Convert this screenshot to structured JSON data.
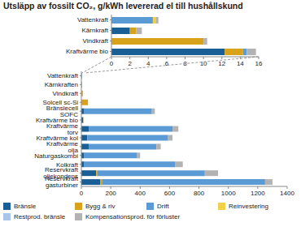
{
  "chart_data": [
    {
      "type": "bar",
      "title": "Utsläpp av fossilt CO₂, g/kWh levererad el till hushållskund",
      "orientation": "horizontal",
      "stacked": true,
      "grid": false,
      "categories": [
        "Vattenkraft",
        "Kärnkraft",
        "Vindkraft",
        "Kraftvärme bio"
      ],
      "series": [
        {
          "name": "Bränsle",
          "color": "#1a5e96",
          "values": [
            0,
            2.0,
            0,
            12.3
          ]
        },
        {
          "name": "Bygg & riv",
          "color": "#d9a21b",
          "values": [
            0,
            0.7,
            10.0,
            2.0
          ]
        },
        {
          "name": "Drift",
          "color": "#5b9bd5",
          "values": [
            4.5,
            0,
            0,
            0.4
          ]
        },
        {
          "name": "Reinvestering",
          "color": "#f2d04a",
          "values": [
            0.3,
            0,
            0,
            0
          ]
        },
        {
          "name": "Restprod. bränsle",
          "color": "#a9c6e8",
          "values": [
            0,
            0,
            0,
            0
          ]
        },
        {
          "name": "Kompensationsprod. för förluster",
          "color": "#b3b3b3",
          "values": [
            0.3,
            0.6,
            0.4,
            1.0
          ]
        }
      ],
      "xlim": [
        0,
        16
      ],
      "xticks": [
        0,
        2,
        4,
        6,
        8,
        10,
        12,
        14,
        16
      ]
    },
    {
      "type": "bar",
      "orientation": "horizontal",
      "stacked": true,
      "grid": false,
      "legend": "bottom",
      "categories": [
        "Vattenkraft",
        "Kärnkraften",
        "Vindkraft",
        "Solcell sc-Si",
        "Bränslecell SOFC",
        "Kraftvärme bio",
        "Kraftvärme torv",
        "Kraftvärme kol",
        "Kraftvärme olja",
        "Naturgaskombi",
        "Kolkraft",
        "Reservkraft oljekondens",
        "Reservkraft gasturbiner"
      ],
      "series": [
        {
          "name": "Bränsle",
          "color": "#1a5e96",
          "values": [
            0,
            2.0,
            0,
            0,
            20,
            12.3,
            50,
            40,
            50,
            20,
            20,
            100,
            130
          ]
        },
        {
          "name": "Bygg & riv",
          "color": "#d9a21b",
          "values": [
            0,
            0.7,
            10.0,
            45,
            0,
            2.0,
            0,
            0,
            0,
            0,
            0,
            10,
            10
          ]
        },
        {
          "name": "Drift",
          "color": "#5b9bd5",
          "values": [
            4.5,
            0,
            0,
            0,
            460,
            0.4,
            570,
            550,
            460,
            360,
            620,
            730,
            1110
          ]
        },
        {
          "name": "Reinvestering",
          "color": "#f2d04a",
          "values": [
            0.3,
            0,
            0,
            0,
            0,
            0,
            0,
            0,
            0,
            0,
            0,
            0,
            0
          ]
        },
        {
          "name": "Restprod. bränsle",
          "color": "#a9c6e8",
          "values": [
            0,
            0,
            0,
            0,
            0,
            0,
            0,
            0,
            0,
            0,
            0,
            0,
            0
          ]
        },
        {
          "name": "Kompensationsprod. för förluster",
          "color": "#b3b3b3",
          "values": [
            0.3,
            0.6,
            0.4,
            0,
            20,
            1.0,
            40,
            30,
            30,
            20,
            50,
            90,
            50
          ]
        }
      ],
      "xlim": [
        0,
        1400
      ],
      "xticks": [
        0,
        200,
        400,
        600,
        800,
        1000,
        1200,
        1400
      ]
    }
  ]
}
